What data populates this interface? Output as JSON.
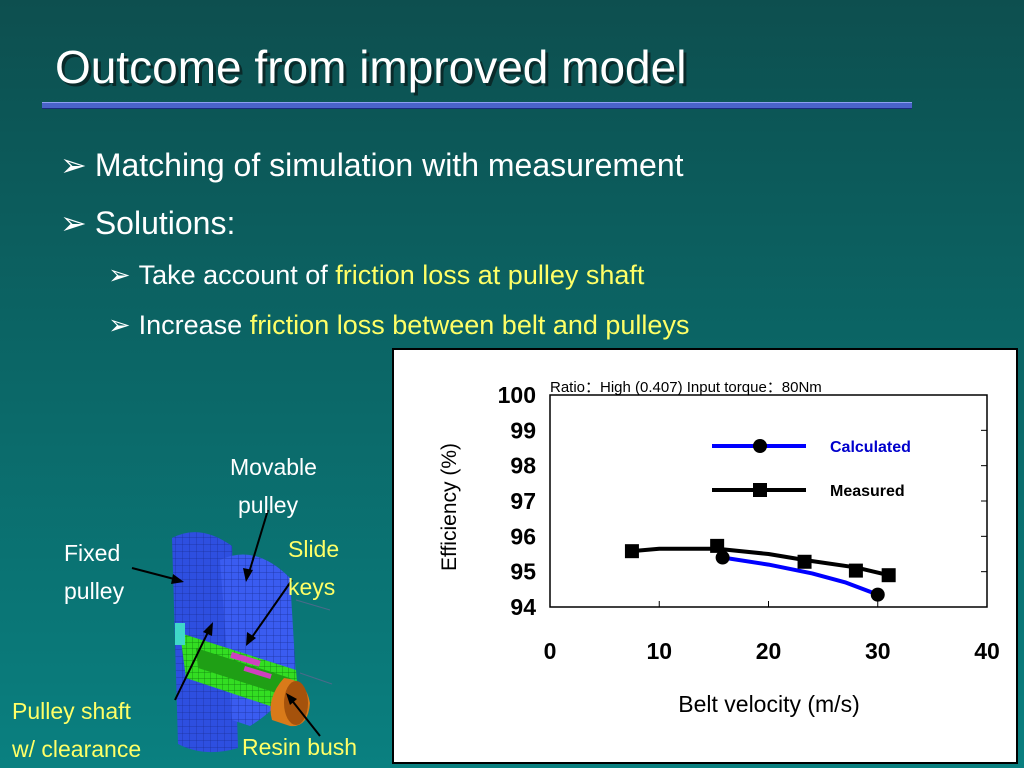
{
  "slide": {
    "title": "Outcome from improved model",
    "bullets": [
      {
        "text": "Matching of simulation with measurement"
      },
      {
        "text": "Solutions:"
      }
    ],
    "sub_bullets": [
      {
        "prefix": "Take account of ",
        "highlight": "friction loss at pulley shaft"
      },
      {
        "prefix": "Increase ",
        "highlight": "friction loss between belt and pulleys"
      }
    ],
    "arrow_glyph": "➢",
    "highlight_color": "#ffff66"
  },
  "figure_labels": {
    "movable_pulley_1": "Movable",
    "movable_pulley_2": "pulley",
    "fixed_pulley_1": "Fixed",
    "fixed_pulley_2": "pulley",
    "slide_keys_1": "Slide",
    "slide_keys_2": "keys",
    "pulley_shaft_1": "Pulley shaft",
    "pulley_shaft_2": "w/ clearance",
    "resin_bush": "Resin bush"
  },
  "chart_data": {
    "type": "line",
    "title": "Ratio：High (0.407) Input torque：80Nm",
    "xlabel": "Belt velocity (m/s)",
    "ylabel": "Efficiency (%)",
    "xlim": [
      0,
      40
    ],
    "ylim": [
      94,
      100
    ],
    "x_ticks": [
      "0",
      "10",
      "20",
      "30",
      "40"
    ],
    "y_ticks": [
      "100",
      "99",
      "98",
      "97",
      "96",
      "95",
      "94"
    ],
    "legend_position": "top-right",
    "grid": false,
    "series": [
      {
        "name": "Calculated",
        "color": "#0000ff",
        "marker": "circle",
        "x": [
          15.8,
          30
        ],
        "y": [
          95.4,
          94.35
        ],
        "curve_x": [
          15.8,
          20,
          24,
          27,
          30
        ],
        "curve_y": [
          95.4,
          95.2,
          94.95,
          94.7,
          94.35
        ]
      },
      {
        "name": "Measured",
        "color": "#000000",
        "marker": "square",
        "x": [
          7.5,
          15.3,
          23.3,
          28,
          31
        ],
        "y": [
          95.58,
          95.73,
          95.28,
          95.03,
          94.9
        ],
        "curve_x": [
          7.5,
          10,
          15.3,
          20,
          23.3,
          28,
          31
        ],
        "curve_y": [
          95.58,
          95.65,
          95.65,
          95.5,
          95.33,
          95.12,
          94.9
        ]
      }
    ]
  }
}
